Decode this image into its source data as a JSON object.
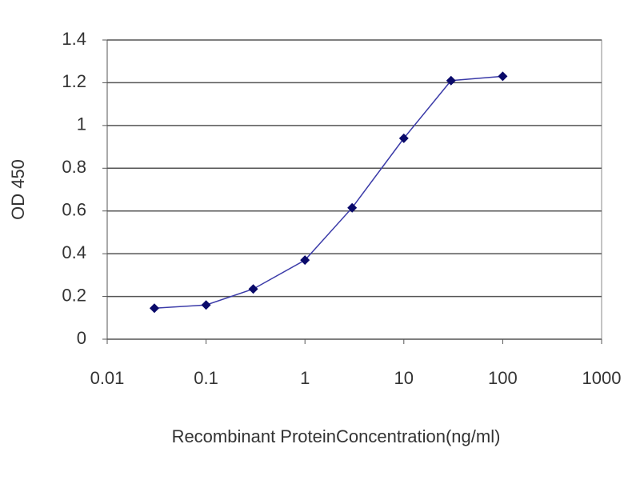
{
  "chart_data": {
    "type": "line",
    "x_label": "Recombinant ProteinConcentration(ng/ml)",
    "y_label": "OD 450",
    "xscale": "log",
    "xlim": [
      0.01,
      1000
    ],
    "xticks": [
      0.01,
      0.1,
      1,
      10,
      100,
      1000
    ],
    "ylim": [
      0,
      1.4
    ],
    "yticks": [
      0,
      0.2,
      0.4,
      0.6,
      0.8,
      1,
      1.2,
      1.4
    ],
    "grid": true,
    "series": [
      {
        "color": "#3a3aa8",
        "marker_color": "#0a0a6a",
        "x": [
          0.03,
          0.1,
          0.3,
          1,
          3,
          10,
          30,
          100
        ],
        "values": [
          0.145,
          0.16,
          0.235,
          0.37,
          0.615,
          0.94,
          1.21,
          1.23
        ]
      }
    ]
  }
}
